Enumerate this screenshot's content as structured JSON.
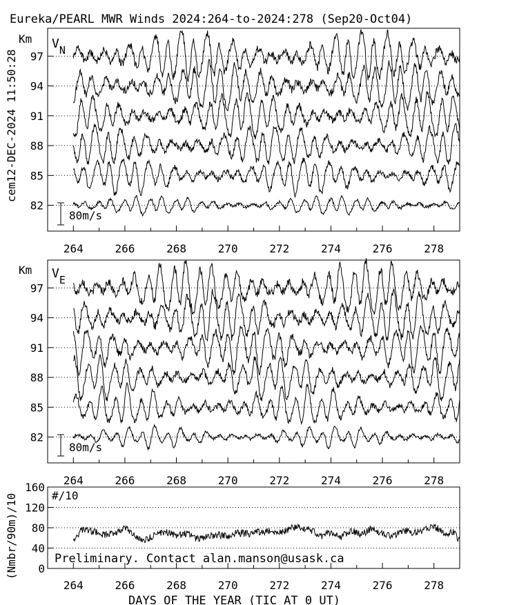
{
  "title": "Eureka/PEARL MWR Winds 2024:264-to-2024:278 (Sep20-Oct04)",
  "side_label": "cem12-DEC-2024 11:50:28",
  "footer_note": "Preliminary. Contact alan.manson@usask.ca",
  "xlabel": "DAYS OF THE YEAR (TIC AT 0 UT)",
  "chart_data": [
    {
      "type": "line",
      "panel": "north-wind",
      "title": "",
      "component_letter": "V",
      "component_subscript": "N",
      "unit_label": "Km",
      "scale_label": "80m/s",
      "x_ticks": [
        264,
        266,
        268,
        270,
        272,
        274,
        276,
        278
      ],
      "xlim": [
        263,
        279
      ],
      "y_ticks": [
        82,
        85,
        88,
        91,
        94,
        97
      ],
      "ylim": [
        79.4,
        99.8
      ],
      "series_baselines": [
        82,
        85,
        88,
        91,
        94,
        97
      ],
      "x_start": 264,
      "x_end": 279,
      "amplitudes": [
        2.4,
        4.6,
        5.2,
        5.8,
        6.2,
        6.6
      ]
    },
    {
      "type": "line",
      "panel": "east-wind",
      "title": "",
      "component_letter": "V",
      "component_subscript": "E",
      "unit_label": "Km",
      "scale_label": "80m/s",
      "x_ticks": [
        264,
        266,
        268,
        270,
        272,
        274,
        276,
        278
      ],
      "xlim": [
        263,
        279
      ],
      "y_ticks": [
        82,
        85,
        88,
        91,
        94,
        97
      ],
      "ylim": [
        79.4,
        99.8
      ],
      "series_baselines": [
        82,
        85,
        88,
        91,
        94,
        97
      ],
      "x_start": 264,
      "x_end": 279,
      "amplitudes": [
        2.6,
        4.8,
        5.4,
        6.0,
        6.4,
        6.8
      ]
    },
    {
      "type": "line",
      "panel": "counts",
      "title": "",
      "ylabel": "(Nmbr/90m)/10",
      "label": "#/10",
      "x_ticks": [
        264,
        266,
        268,
        270,
        272,
        274,
        276,
        278
      ],
      "xlim": [
        263,
        279
      ],
      "y_ticks": [
        0,
        40,
        80,
        120,
        160
      ],
      "ylim": [
        0,
        160
      ],
      "grid_y": [
        40,
        80,
        120
      ],
      "x": [
        264.0,
        264.4,
        264.8,
        265.2,
        265.6,
        266.0,
        266.4,
        266.8,
        267.2,
        267.6,
        268.0,
        268.4,
        268.8,
        269.2,
        269.6,
        270.0,
        270.4,
        270.8,
        271.2,
        271.6,
        272.0,
        272.4,
        272.8,
        273.2,
        273.6,
        274.0,
        274.4,
        274.8,
        275.2,
        275.6,
        276.0,
        276.4,
        276.8,
        277.2,
        277.6,
        278.0,
        278.4,
        278.8,
        279.0
      ],
      "values": [
        58,
        78,
        72,
        66,
        70,
        80,
        62,
        55,
        68,
        72,
        64,
        70,
        58,
        62,
        66,
        64,
        70,
        68,
        72,
        74,
        70,
        78,
        82,
        76,
        64,
        70,
        62,
        74,
        66,
        80,
        68,
        64,
        76,
        70,
        74,
        84,
        68,
        72,
        52
      ]
    }
  ]
}
